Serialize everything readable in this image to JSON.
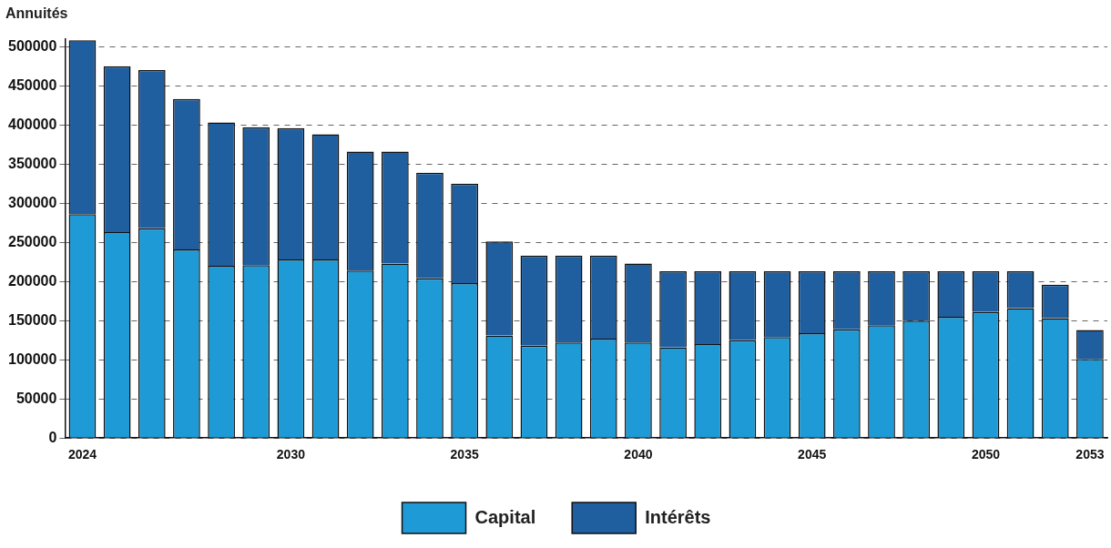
{
  "chart_data": {
    "type": "bar",
    "ylabel": "Annuités",
    "stacked": true,
    "categories": [
      "2024",
      null,
      null,
      null,
      null,
      null,
      "2030",
      null,
      null,
      null,
      null,
      "2035",
      null,
      null,
      null,
      null,
      "2040",
      null,
      null,
      null,
      null,
      "2045",
      null,
      null,
      null,
      null,
      "2050",
      null,
      null,
      "2053"
    ],
    "series": [
      {
        "name": "Capital",
        "color": "#1e9ad6",
        "values": [
          286000,
          263000,
          268000,
          241000,
          220000,
          221000,
          228000,
          228000,
          214000,
          223000,
          204000,
          198000,
          131000,
          118000,
          122000,
          127000,
          122000,
          116000,
          120000,
          125000,
          129000,
          134000,
          139000,
          144000,
          150000,
          155000,
          161000,
          166000,
          153000,
          101000
        ]
      },
      {
        "name": "Intérêts",
        "color": "#1f5e9f",
        "values": [
          222000,
          212000,
          202000,
          192000,
          183000,
          176000,
          168000,
          160000,
          152000,
          143000,
          135000,
          127000,
          120000,
          115000,
          111000,
          106000,
          101000,
          97000,
          93000,
          88000,
          84000,
          79000,
          74000,
          69000,
          63000,
          58000,
          52000,
          47000,
          43000,
          37000
        ]
      }
    ],
    "ylim": [
      0,
      510000
    ],
    "yticks": [
      0,
      50000,
      100000,
      150000,
      200000,
      250000,
      300000,
      350000,
      400000,
      450000,
      500000
    ],
    "grid": "y",
    "legend": "bottom"
  }
}
